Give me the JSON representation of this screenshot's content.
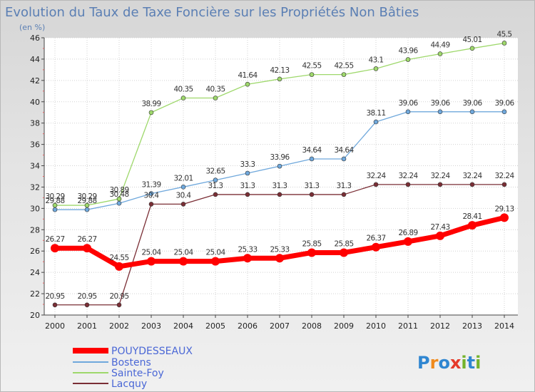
{
  "chart_data": {
    "type": "line",
    "title": "Evolution du Taux de Taxe Foncière sur les Propriétés Non Bâties",
    "subtitle": "(en %)",
    "xlabel": "",
    "ylabel": "",
    "ylim": [
      20,
      46
    ],
    "yticks": [
      "20",
      "22",
      "24",
      "26",
      "28",
      "30",
      "32",
      "34",
      "36",
      "38",
      "40",
      "42",
      "44",
      "46"
    ],
    "x": [
      "2000",
      "2001",
      "2002",
      "2003",
      "2004",
      "2005",
      "2006",
      "2007",
      "2008",
      "2009",
      "2010",
      "2011",
      "2012",
      "2013",
      "2014"
    ],
    "grid": true,
    "legend_position": "bottom-left",
    "series": [
      {
        "name": "POUYDESSEAUX",
        "color": "#ff0000",
        "values": [
          26.27,
          26.27,
          24.55,
          25.04,
          25.04,
          25.04,
          25.33,
          25.33,
          25.85,
          25.85,
          26.37,
          26.89,
          27.43,
          28.41,
          29.13
        ],
        "labels": [
          "26.27",
          "26.27",
          "24.55",
          "25.04",
          "25.04",
          "25.04",
          "25.33",
          "25.33",
          "25.85",
          "25.85",
          "26.37",
          "26.89",
          "27.43",
          "28.41",
          "29.13"
        ]
      },
      {
        "name": "Bostens",
        "color": "#6fa8dc",
        "values": [
          29.88,
          29.88,
          30.48,
          31.39,
          32.01,
          32.65,
          33.3,
          33.96,
          34.64,
          34.64,
          38.11,
          39.06,
          39.06,
          39.06,
          39.06
        ],
        "labels": [
          "29.88",
          "29.88",
          "30.48",
          "31.39",
          "32.01",
          "32.65",
          "33.3",
          "33.96",
          "34.64",
          "34.64",
          "38.11",
          "39.06",
          "39.06",
          "39.06",
          "39.06"
        ]
      },
      {
        "name": "Sainte-Foy",
        "color": "#9ed86b",
        "values": [
          30.29,
          30.29,
          30.89,
          38.99,
          40.35,
          40.35,
          41.64,
          42.13,
          42.55,
          42.55,
          43.1,
          43.96,
          44.49,
          45.01,
          45.5
        ],
        "labels": [
          "30.29",
          "30.29",
          "30.89",
          "38.99",
          "40.35",
          "40.35",
          "41.64",
          "42.13",
          "42.55",
          "42.55",
          "43.1",
          "43.96",
          "44.49",
          "45.01",
          "45.5"
        ]
      },
      {
        "name": "Lacquy",
        "color": "#7a2e35",
        "values": [
          20.95,
          20.95,
          20.95,
          30.4,
          30.4,
          31.3,
          31.3,
          31.3,
          31.3,
          31.3,
          32.24,
          32.24,
          32.24,
          32.24,
          32.24
        ],
        "labels": [
          "20.95",
          "20.95",
          "20.95",
          "30.4",
          "30.4",
          "31.3",
          "31.3",
          "31.3",
          "31.3",
          "31.3",
          "32.24",
          "32.24",
          "32.24",
          "32.24",
          "32.24"
        ]
      }
    ]
  },
  "brand": {
    "text": "Proxiti",
    "letter_colors": [
      "#2f86d1",
      "#f08a1c",
      "#2f86d1",
      "#e53a2a",
      "#74b32c",
      "#2f86d1",
      "#74b32c"
    ]
  }
}
